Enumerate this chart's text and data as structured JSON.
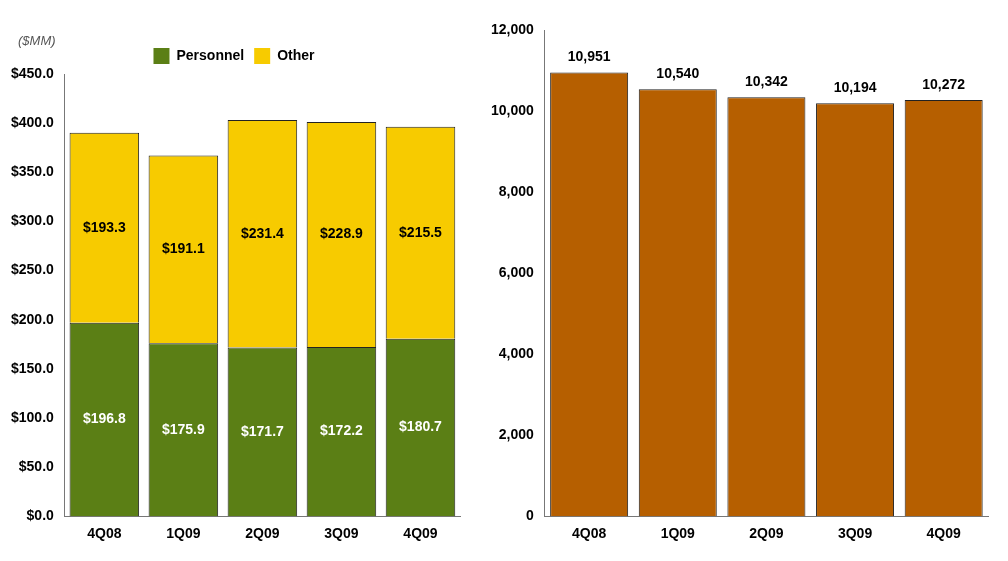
{
  "chart_data": [
    {
      "type": "bar",
      "stacked": true,
      "ylabel": "($MM)",
      "legend": "top",
      "grid": false,
      "categories": [
        "4Q08",
        "1Q09",
        "2Q09",
        "3Q09",
        "4Q09"
      ],
      "series": [
        {
          "name": "Personnel",
          "color": "#5b7f15",
          "values": [
            196.8,
            175.9,
            171.7,
            172.2,
            180.7
          ],
          "value_labels": [
            "$196.8",
            "$175.9",
            "$171.7",
            "$172.2",
            "$180.7"
          ]
        },
        {
          "name": "Other",
          "color": "#f7cb00",
          "values": [
            193.3,
            191.1,
            231.4,
            228.9,
            215.5
          ],
          "value_labels": [
            "$193.3",
            "$191.1",
            "$231.4",
            "$228.9",
            "$215.5"
          ]
        }
      ],
      "ylim": [
        0,
        450
      ],
      "yticks": [
        {
          "value": 0,
          "label": "$0.0"
        },
        {
          "value": 50,
          "label": "$50.0"
        },
        {
          "value": 100,
          "label": "$100.0"
        },
        {
          "value": 150,
          "label": "$150.0"
        },
        {
          "value": 200,
          "label": "$200.0"
        },
        {
          "value": 250,
          "label": "$250.0"
        },
        {
          "value": 300,
          "label": "$300.0"
        },
        {
          "value": 350,
          "label": "$350.0"
        },
        {
          "value": 400,
          "label": "$400.0"
        },
        {
          "value": 450,
          "label": "$450.0"
        }
      ]
    },
    {
      "type": "bar",
      "grid": false,
      "categories": [
        "4Q08",
        "1Q09",
        "2Q09",
        "3Q09",
        "4Q09"
      ],
      "values": [
        10951,
        10540,
        10342,
        10194,
        10272
      ],
      "color": "#b65f00",
      "value_labels": [
        "10,951",
        "10,540",
        "10,342",
        "10,194",
        "10,272"
      ],
      "ylim": [
        0,
        12000
      ],
      "yticks": [
        {
          "value": 0,
          "label": "0"
        },
        {
          "value": 2000,
          "label": "2,000"
        },
        {
          "value": 4000,
          "label": "4,000"
        },
        {
          "value": 6000,
          "label": "6,000"
        },
        {
          "value": 8000,
          "label": "8,000"
        },
        {
          "value": 10000,
          "label": "10,000"
        },
        {
          "value": 12000,
          "label": "12,000"
        }
      ]
    }
  ]
}
